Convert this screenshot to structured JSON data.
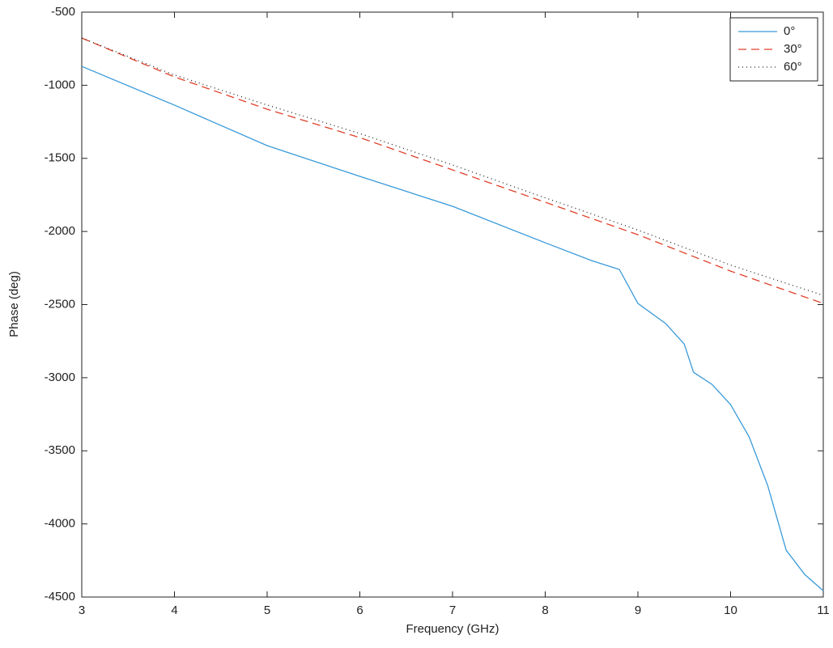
{
  "chart_data": {
    "type": "line",
    "xlabel": "Frequency (GHz)",
    "ylabel": "Phase (deg)",
    "xlim": [
      3,
      11
    ],
    "xticks": [
      3,
      4,
      5,
      6,
      7,
      8,
      9,
      10,
      11
    ],
    "ylim": [
      -4500,
      -500
    ],
    "yticks": [
      -4500,
      -4000,
      -3500,
      -3000,
      -2500,
      -2000,
      -1500,
      -1000,
      -500
    ],
    "legend": "upper-right",
    "series": [
      {
        "name": "0°",
        "color": "#3a9ad9",
        "dash": "none",
        "x": [
          3,
          4,
          5,
          6,
          7,
          8,
          8.5,
          8.8,
          9,
          9.3,
          9.5,
          9.6,
          9.8,
          10,
          10.2,
          10.4,
          10.5,
          10.6,
          10.8,
          11
        ],
        "values": [
          -871,
          -1136,
          -1413,
          -1623,
          -1828,
          -2077,
          -2199,
          -2260,
          -2492,
          -2630,
          -2770,
          -2963,
          -3046,
          -3184,
          -3405,
          -3737,
          -3959,
          -4180,
          -4346,
          -4457
        ]
      },
      {
        "name": "30°",
        "color": "#e0402a",
        "dash": "10 6",
        "x": [
          3,
          4,
          5,
          6,
          7,
          8,
          9,
          10,
          11
        ],
        "values": [
          -677,
          -943,
          -1164,
          -1358,
          -1579,
          -1800,
          -2022,
          -2271,
          -2492
        ]
      },
      {
        "name": "60°",
        "color": "#222222",
        "dash": "1 4",
        "x": [
          3,
          4,
          5,
          6,
          7,
          8,
          9,
          10,
          11
        ],
        "values": [
          -677,
          -930,
          -1135,
          -1330,
          -1545,
          -1770,
          -1990,
          -2230,
          -2437
        ]
      }
    ]
  }
}
